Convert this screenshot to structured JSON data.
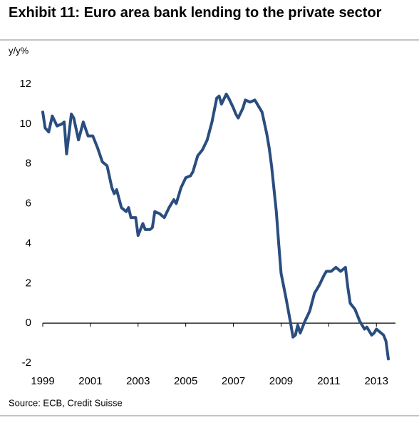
{
  "chart_data": {
    "type": "line",
    "title": "Exhibit 11: Euro area bank lending to the private sector",
    "y_label": "y/y%",
    "source": "Source: ECB, Credit Suisse",
    "color": "#2a4d7f",
    "x": [
      1999.0,
      1999.1,
      1999.25,
      1999.4,
      1999.6,
      1999.8,
      1999.9,
      2000.0,
      2000.2,
      2000.3,
      2000.5,
      2000.7,
      2000.9,
      2001.1,
      2001.3,
      2001.5,
      2001.7,
      2001.9,
      2002.0,
      2002.1,
      2002.3,
      2002.5,
      2002.6,
      2002.7,
      2002.9,
      2003.0,
      2003.2,
      2003.3,
      2003.5,
      2003.6,
      2003.7,
      2003.9,
      2004.1,
      2004.3,
      2004.5,
      2004.6,
      2004.8,
      2005.0,
      2005.2,
      2005.3,
      2005.5,
      2005.7,
      2005.9,
      2006.1,
      2006.3,
      2006.4,
      2006.5,
      2006.7,
      2006.8,
      2007.0,
      2007.1,
      2007.2,
      2007.4,
      2007.5,
      2007.7,
      2007.9,
      2008.0,
      2008.2,
      2008.4,
      2008.5,
      2008.6,
      2008.8,
      2008.9,
      2009.0,
      2009.2,
      2009.4,
      2009.5,
      2009.6,
      2009.7,
      2009.8,
      2010.0,
      2010.2,
      2010.4,
      2010.6,
      2010.8,
      2010.9,
      2011.1,
      2011.3,
      2011.5,
      2011.7,
      2011.8,
      2011.9,
      2012.1,
      2012.3,
      2012.5,
      2012.6,
      2012.8,
      2012.9,
      2013.0,
      2013.1,
      2013.3,
      2013.4,
      2013.5
    ],
    "values": [
      10.6,
      9.8,
      9.6,
      10.4,
      9.9,
      10.0,
      10.1,
      8.5,
      10.5,
      10.3,
      9.2,
      10.1,
      9.4,
      9.4,
      8.8,
      8.1,
      7.9,
      6.8,
      6.5,
      6.7,
      5.8,
      5.6,
      5.8,
      5.3,
      5.3,
      4.4,
      5.0,
      4.7,
      4.7,
      4.8,
      5.6,
      5.5,
      5.3,
      5.8,
      6.2,
      6.0,
      6.8,
      7.3,
      7.4,
      7.6,
      8.4,
      8.7,
      9.2,
      10.1,
      11.3,
      11.4,
      11.0,
      11.5,
      11.3,
      10.8,
      10.5,
      10.3,
      10.8,
      11.2,
      11.1,
      11.2,
      11.0,
      10.6,
      9.5,
      8.8,
      7.9,
      5.6,
      4.0,
      2.5,
      1.3,
      0.0,
      -0.7,
      -0.6,
      -0.1,
      -0.5,
      0.1,
      0.6,
      1.5,
      1.9,
      2.4,
      2.6,
      2.6,
      2.8,
      2.6,
      2.8,
      1.8,
      1.0,
      0.7,
      0.1,
      -0.3,
      -0.2,
      -0.6,
      -0.5,
      -0.3,
      -0.4,
      -0.6,
      -0.9,
      -1.8
    ],
    "xlim": [
      1999,
      2013.8
    ],
    "xticks": [
      1999,
      2001,
      2003,
      2005,
      2007,
      2009,
      2011,
      2013
    ],
    "ylim": [
      -2,
      12
    ],
    "yticks": [
      -2,
      0,
      2,
      4,
      6,
      8,
      10,
      12
    ]
  }
}
